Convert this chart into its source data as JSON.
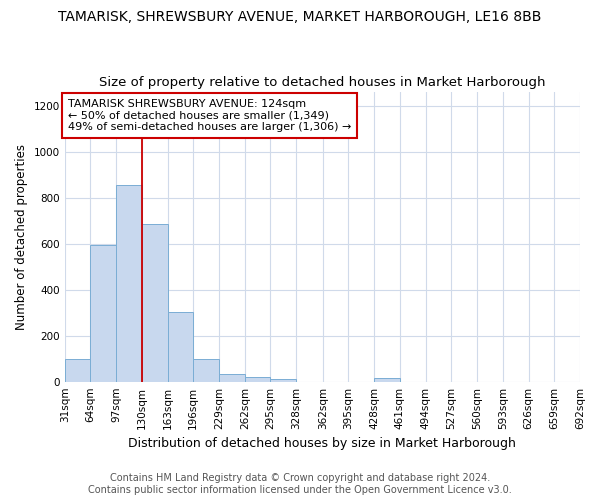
{
  "title": "TAMARISK, SHREWSBURY AVENUE, MARKET HARBOROUGH, LE16 8BB",
  "subtitle": "Size of property relative to detached houses in Market Harborough",
  "xlabel": "Distribution of detached houses by size in Market Harborough",
  "ylabel": "Number of detached properties",
  "footer_line1": "Contains HM Land Registry data © Crown copyright and database right 2024.",
  "footer_line2": "Contains public sector information licensed under the Open Government Licence v3.0.",
  "bar_edges": [
    31,
    64,
    97,
    130,
    163,
    196,
    229,
    262,
    295,
    328,
    362,
    395,
    428,
    461,
    494,
    527,
    560,
    593,
    626,
    659,
    692
  ],
  "bar_heights": [
    100,
    595,
    855,
    685,
    305,
    100,
    35,
    22,
    12,
    0,
    0,
    0,
    15,
    0,
    0,
    0,
    0,
    0,
    0,
    0
  ],
  "bar_color": "#c8d8ee",
  "bar_edgecolor": "#7aadd4",
  "grid_color": "#d0daea",
  "background_color": "#ffffff",
  "vline_x": 130,
  "vline_color": "#cc0000",
  "annotation_text": "TAMARISK SHREWSBURY AVENUE: 124sqm\n← 50% of detached houses are smaller (1,349)\n49% of semi-detached houses are larger (1,306) →",
  "annotation_box_edgecolor": "#cc0000",
  "annotation_box_facecolor": "#ffffff",
  "ylim": [
    0,
    1260
  ],
  "yticks": [
    0,
    200,
    400,
    600,
    800,
    1000,
    1200
  ],
  "title_fontsize": 10,
  "subtitle_fontsize": 9.5,
  "xlabel_fontsize": 9,
  "ylabel_fontsize": 8.5,
  "tick_fontsize": 7.5,
  "annotation_fontsize": 8,
  "footer_fontsize": 7
}
